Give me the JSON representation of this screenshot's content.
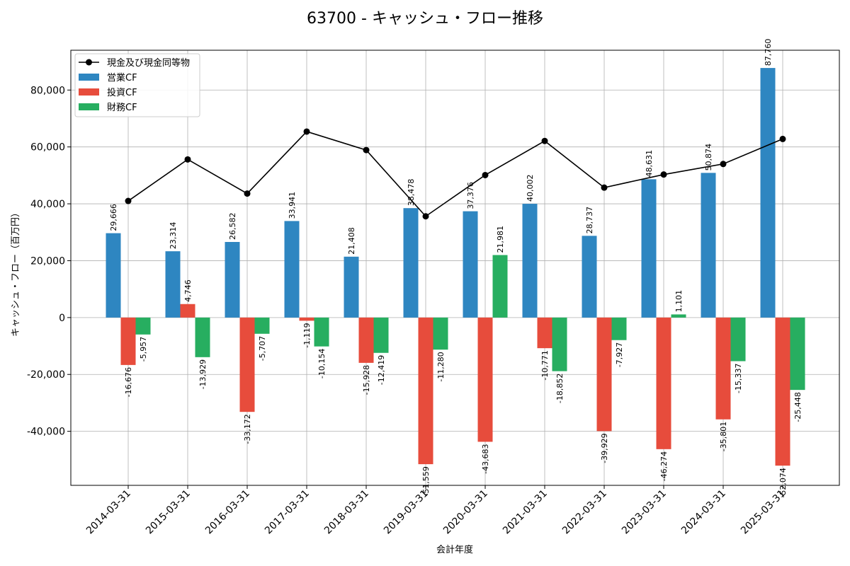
{
  "chart_data": {
    "type": "bar",
    "title": "63700 - キャッシュ・フロー推移",
    "xlabel": "会計年度",
    "ylabel": "キャッシュ・フロー（百万円）",
    "ylim": [
      -59000,
      94000
    ],
    "yticks": [
      -40000,
      -20000,
      0,
      20000,
      40000,
      60000,
      80000
    ],
    "ytick_labels": [
      "-40,000",
      "-20,000",
      "0",
      "20,000",
      "40,000",
      "60,000",
      "80,000"
    ],
    "grid": true,
    "legend_position": "top-left",
    "categories": [
      "2014-03-31",
      "2015-03-31",
      "2016-03-31",
      "2017-03-31",
      "2018-03-31",
      "2019-03-31",
      "2020-03-31",
      "2021-03-31",
      "2022-03-31",
      "2023-03-31",
      "2024-03-31",
      "2025-03-31"
    ],
    "series": [
      {
        "name": "営業CF",
        "kind": "bar",
        "color": "#2e86c1",
        "values": [
          29666,
          23314,
          26582,
          33941,
          21408,
          38478,
          37376,
          40002,
          28737,
          48631,
          50874,
          87760
        ],
        "labels": [
          "29,666",
          "23,314",
          "26,582",
          "33,941",
          "21,408",
          "38,478",
          "37,376",
          "40,002",
          "28,737",
          "48,631",
          "50,874",
          "87,760"
        ]
      },
      {
        "name": "投資CF",
        "kind": "bar",
        "color": "#e74c3c",
        "values": [
          -16676,
          4746,
          -33172,
          -1119,
          -15928,
          -51559,
          -43683,
          -10771,
          -39929,
          -46274,
          -35801,
          -52074
        ],
        "labels": [
          "-16,676",
          "4,746",
          "-33,172",
          "-1,119",
          "-15,928",
          "-51,559",
          "-43,683",
          "-10,771",
          "-39,929",
          "-46,274",
          "-35,801",
          "-52,074"
        ]
      },
      {
        "name": "財務CF",
        "kind": "bar",
        "color": "#27ae60",
        "values": [
          -5957,
          -13929,
          -5707,
          -10154,
          -12419,
          -11280,
          21981,
          -18852,
          -7927,
          1101,
          -15337,
          -25448
        ],
        "labels": [
          "-5,957",
          "-13,929",
          "-5,707",
          "-10,154",
          "-12,419",
          "-11,280",
          "21,981",
          "-18,852",
          "-7,927",
          "1,101",
          "-15,337",
          "-25,448"
        ]
      },
      {
        "name": "現金及び現金同等物",
        "kind": "line",
        "color": "#000000",
        "values": [
          41000,
          55600,
          43600,
          65400,
          58900,
          35600,
          50100,
          62100,
          45700,
          50300,
          54000,
          62800
        ]
      }
    ]
  }
}
